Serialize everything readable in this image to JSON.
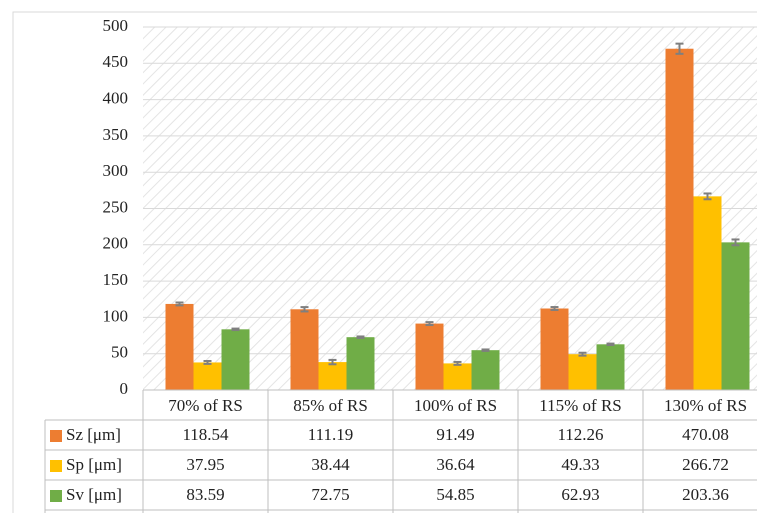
{
  "chart_data": {
    "type": "bar",
    "categories": [
      "70% of RS",
      "85% of RS",
      "100% of RS",
      "115% of RS",
      "130% of RS"
    ],
    "series": [
      {
        "name": "Sz [μm]",
        "color": "#ED7D31",
        "values": [
          118.54,
          111.19,
          91.49,
          112.26,
          470.08
        ],
        "errors": [
          2,
          3,
          2,
          2,
          7
        ]
      },
      {
        "name": "Sp [μm]",
        "color": "#FFC000",
        "values": [
          37.95,
          38.44,
          36.64,
          49.33,
          266.72
        ],
        "errors": [
          2,
          3,
          2,
          2,
          4
        ]
      },
      {
        "name": "Sv [μm]",
        "color": "#70AD47",
        "values": [
          83.59,
          72.75,
          54.85,
          62.93,
          203.36
        ],
        "errors": [
          1,
          1,
          1,
          1,
          4
        ]
      }
    ],
    "ylim": [
      0,
      500
    ],
    "yticks": [
      0,
      50,
      100,
      150,
      200,
      250,
      300,
      350,
      400,
      450,
      500
    ],
    "grid": true
  }
}
